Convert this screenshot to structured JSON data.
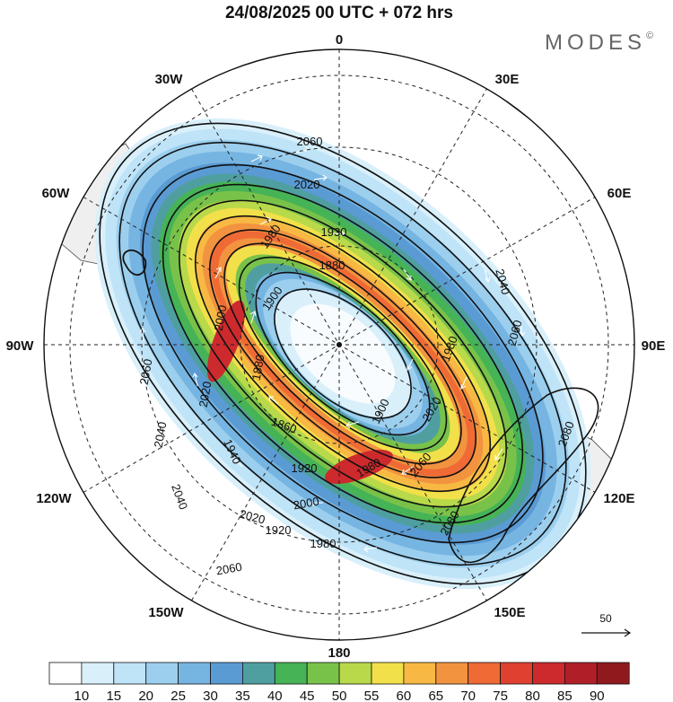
{
  "title": "24/08/2025  00 UTC  + 072 hrs",
  "brand": "MODES",
  "brand_mark": "©",
  "lon_labels": {
    "top": "0",
    "e30": "30E",
    "e60": "60E",
    "e90": "90E",
    "e120": "120E",
    "e150": "150E",
    "bottom": "180",
    "w150": "150W",
    "w120": "120W",
    "w90": "90W",
    "w60": "60W",
    "w30": "30W"
  },
  "contour_labels": [
    "2060",
    "2020",
    "1980",
    "1930",
    "1880",
    "1900",
    "2040",
    "1980",
    "2060",
    "1880",
    "2020",
    "1900",
    "1860",
    "2000",
    "1920",
    "2060",
    "2020",
    "1940",
    "1980",
    "2040",
    "2060",
    "2040",
    "2080",
    "2080",
    "2020",
    "2000",
    "1920",
    "1980",
    "2060"
  ],
  "reference_vector": "50",
  "colorbar": {
    "ticks": [
      "10",
      "15",
      "20",
      "25",
      "30",
      "35",
      "40",
      "45",
      "50",
      "55",
      "60",
      "65",
      "70",
      "75",
      "80",
      "85",
      "90"
    ],
    "colors": [
      "#ffffff",
      "#d9f0fb",
      "#bfe3f7",
      "#9ccfee",
      "#76b5e2",
      "#5a9bd4",
      "#4f9fa0",
      "#46b356",
      "#79c24a",
      "#b8d94a",
      "#f2e04a",
      "#f7b943",
      "#f29340",
      "#ef6a35",
      "#e04030",
      "#cc2a2d",
      "#b01f28",
      "#8f1a1e"
    ]
  }
}
